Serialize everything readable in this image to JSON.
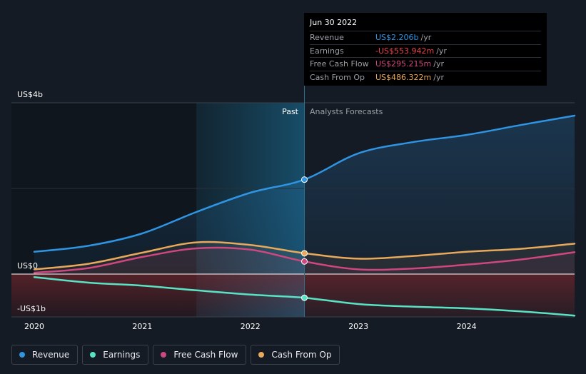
{
  "chart_data": {
    "type": "line",
    "x_ticks": [
      "2020",
      "2021",
      "2022",
      "2023",
      "2024"
    ],
    "y_ticks": [
      {
        "label": "US$4b",
        "value": 4
      },
      {
        "label": "US$0",
        "value": 0
      },
      {
        "label": "-US$1b",
        "value": -1
      }
    ],
    "ylim": [
      -1,
      4
    ],
    "past_label": "Past",
    "forecast_label": "Analysts Forecasts",
    "split_date": 2022.5,
    "series": [
      {
        "name": "Revenue",
        "color": "#2f94e2",
        "x": [
          2020.0,
          2020.5,
          2021.0,
          2021.5,
          2022.0,
          2022.5,
          2023.0,
          2023.5,
          2024.0,
          2024.5,
          2025.0
        ],
        "y": [
          0.52,
          0.66,
          0.95,
          1.45,
          1.9,
          2.206,
          2.82,
          3.08,
          3.25,
          3.48,
          3.7
        ]
      },
      {
        "name": "Earnings",
        "color": "#59e3c5",
        "x": [
          2020.0,
          2020.5,
          2021.0,
          2021.5,
          2022.0,
          2022.5,
          2023.0,
          2023.5,
          2024.0,
          2024.5,
          2025.0
        ],
        "y": [
          -0.07,
          -0.2,
          -0.27,
          -0.38,
          -0.48,
          -0.554,
          -0.7,
          -0.76,
          -0.8,
          -0.87,
          -0.97
        ]
      },
      {
        "name": "Free Cash Flow",
        "color": "#d0467f",
        "x": [
          2020.0,
          2020.5,
          2021.0,
          2021.5,
          2022.0,
          2022.5,
          2023.0,
          2023.5,
          2024.0,
          2024.5,
          2025.0
        ],
        "y": [
          0.03,
          0.14,
          0.4,
          0.6,
          0.57,
          0.295,
          0.11,
          0.13,
          0.22,
          0.34,
          0.51
        ]
      },
      {
        "name": "Cash From Op",
        "color": "#e8a95b",
        "x": [
          2020.0,
          2020.5,
          2021.0,
          2021.5,
          2022.0,
          2022.5,
          2023.0,
          2023.5,
          2024.0,
          2024.5,
          2025.0
        ],
        "y": [
          0.11,
          0.24,
          0.5,
          0.74,
          0.68,
          0.486,
          0.36,
          0.42,
          0.52,
          0.59,
          0.71
        ]
      }
    ]
  },
  "tooltip": {
    "date": "Jun 30 2022",
    "unit": "/yr",
    "rows": [
      {
        "label": "Revenue",
        "value": "US$2.206b",
        "color": "#2f94e2"
      },
      {
        "label": "Earnings",
        "value": "-US$553.942m",
        "color": "#e8414a"
      },
      {
        "label": "Free Cash Flow",
        "value": "US$295.215m",
        "color": "#d0467f"
      },
      {
        "label": "Cash From Op",
        "value": "US$486.322m",
        "color": "#e8a95b"
      }
    ]
  },
  "legend": [
    {
      "label": "Revenue",
      "color": "#2f94e2"
    },
    {
      "label": "Earnings",
      "color": "#59e3c5"
    },
    {
      "label": "Free Cash Flow",
      "color": "#d0467f"
    },
    {
      "label": "Cash From Op",
      "color": "#e8a95b"
    }
  ]
}
